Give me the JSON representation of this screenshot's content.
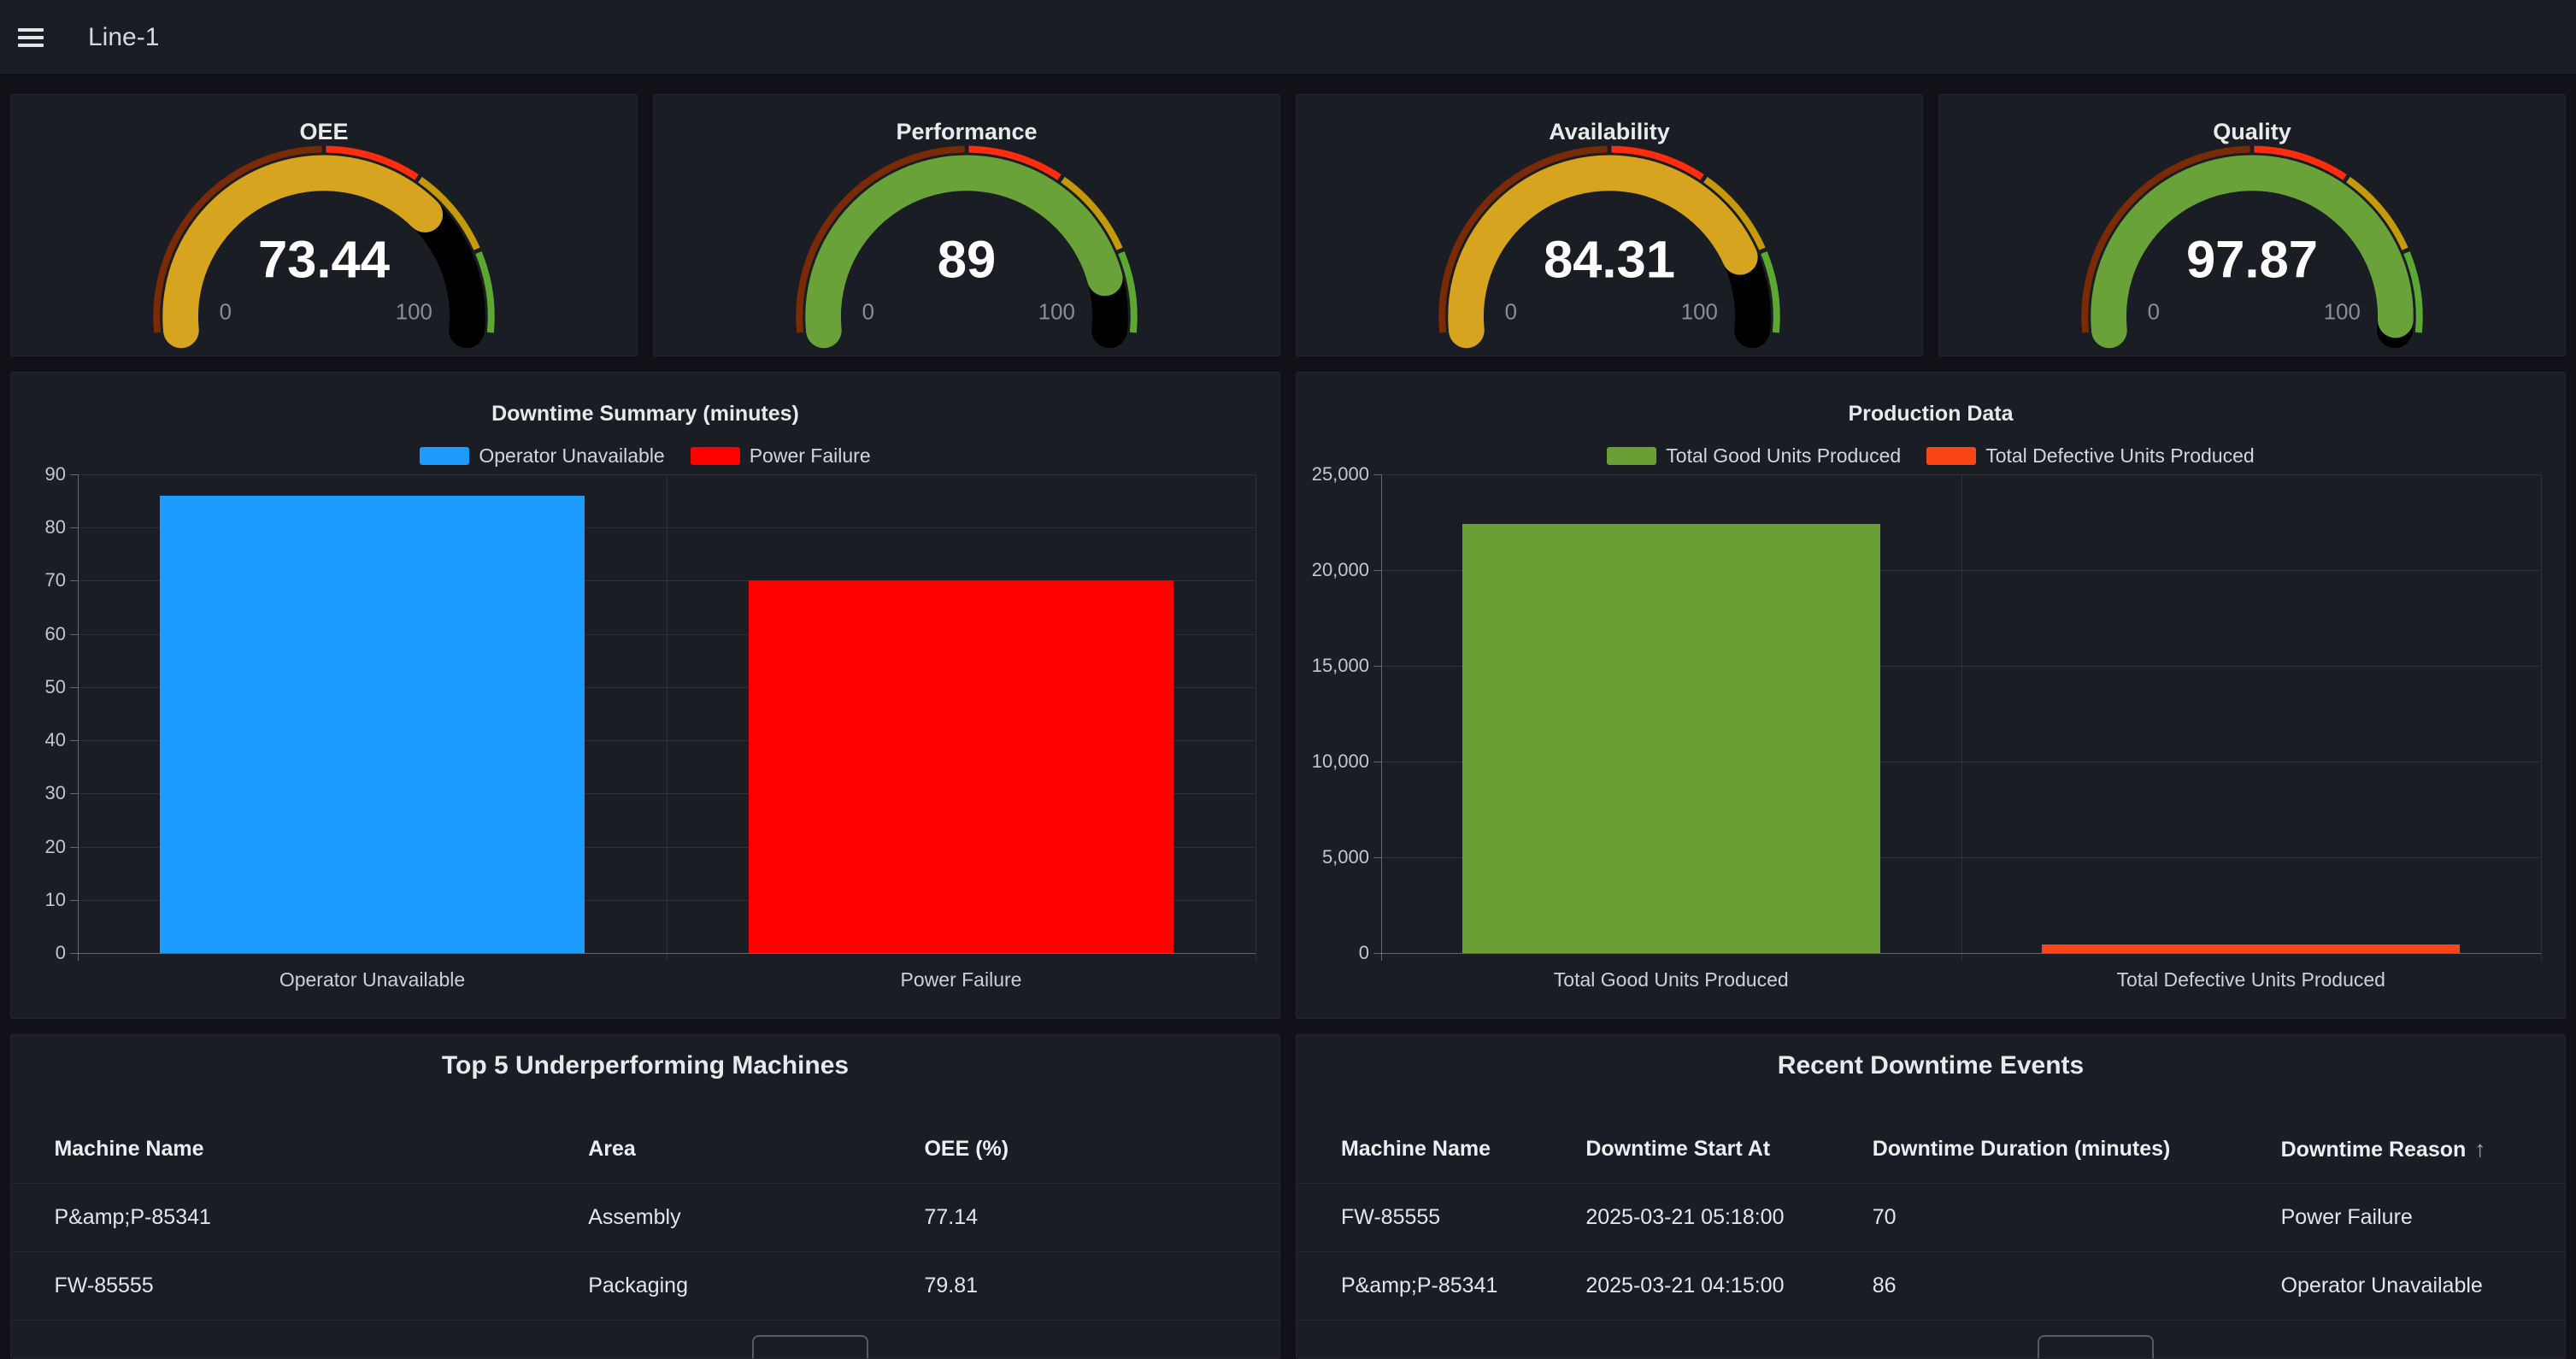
{
  "topbar": {
    "title": "Line-1"
  },
  "colors": {
    "page_bg": "#111217",
    "panel_bg": "#1B1D25",
    "gauge_yellow": "#D6A41E",
    "gauge_green": "#6AA23A",
    "bar_blue": "#1E9BFF",
    "bar_red": "#FF0000",
    "bar_green": "#699F34",
    "bar_orange": "#FB4516"
  },
  "gauges": [
    {
      "title": "OEE",
      "value": 73.44,
      "display": "73.44",
      "fill_color": "#D6A41E",
      "min_label": "0",
      "max_label": "100"
    },
    {
      "title": "Performance",
      "value": 89,
      "display": "89",
      "fill_color": "#6AA23A",
      "min_label": "0",
      "max_label": "100"
    },
    {
      "title": "Availability",
      "value": 84.31,
      "display": "84.31",
      "fill_color": "#D6A41E",
      "min_label": "0",
      "max_label": "100"
    },
    {
      "title": "Quality",
      "value": 97.87,
      "display": "97.87",
      "fill_color": "#6AA23A",
      "min_label": "0",
      "max_label": "100"
    }
  ],
  "gauge_thresholds": [
    {
      "from": 0,
      "to": 50,
      "color": "#7A2A04"
    },
    {
      "from": 50,
      "to": 68,
      "color": "#FF2D0E"
    },
    {
      "from": 68,
      "to": 85,
      "color": "#C6990A"
    },
    {
      "from": 85,
      "to": 100,
      "color": "#5CA832"
    }
  ],
  "chart_data": [
    {
      "type": "bar",
      "title": "Downtime Summary (minutes)",
      "categories": [
        "Operator Unavailable",
        "Power Failure"
      ],
      "values": [
        86,
        70
      ],
      "colors": [
        "#1E9BFF",
        "#FF0000"
      ],
      "legend": [
        "Operator Unavailable",
        "Power Failure"
      ],
      "xlabel": "",
      "ylabel": "",
      "ylim": [
        0,
        90
      ],
      "ytick_step": 10,
      "grid": true,
      "legend_position": "top-center"
    },
    {
      "type": "bar",
      "title": "Production Data",
      "categories": [
        "Total Good Units Produced",
        "Total Defective Units Produced"
      ],
      "values": [
        22400,
        450
      ],
      "colors": [
        "#699F34",
        "#FB4516"
      ],
      "legend": [
        "Total Good Units Produced",
        "Total Defective Units Produced"
      ],
      "xlabel": "",
      "ylabel": "",
      "ylim": [
        0,
        25000
      ],
      "ytick_step": 5000,
      "y_format": "thousands",
      "grid": true,
      "legend_position": "top-center"
    }
  ],
  "tables": [
    {
      "title": "Top 5 Underperforming Machines",
      "columns": [
        {
          "label": "Machine Name"
        },
        {
          "label": "Area"
        },
        {
          "label": "OEE (%)"
        }
      ],
      "rows": [
        [
          "P&amp;P-85341",
          "Assembly",
          "77.14"
        ],
        [
          "FW-85555",
          "Packaging",
          "79.81"
        ]
      ]
    },
    {
      "title": "Recent Downtime Events",
      "sort_icon": "↑",
      "columns": [
        {
          "label": "Machine Name"
        },
        {
          "label": "Downtime Start At"
        },
        {
          "label": "Downtime Duration (minutes)"
        },
        {
          "label": "Downtime Reason",
          "sort": "asc"
        }
      ],
      "rows": [
        [
          "FW-85555",
          "2025-03-21 05:18:00",
          "70",
          "Power Failure"
        ],
        [
          "P&amp;P-85341",
          "2025-03-21 04:15:00",
          "86",
          "Operator Unavailable"
        ]
      ]
    }
  ]
}
